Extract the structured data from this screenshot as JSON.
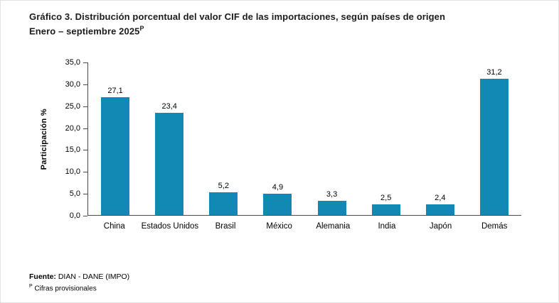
{
  "header": {
    "title": "Gráfico 3. Distribución porcentual del valor CIF de las importaciones, según países de origen",
    "subtitle": "Enero – septiembre 2025",
    "subtitle_superscript": "P"
  },
  "chart_data": {
    "type": "bar",
    "title": "Gráfico 3. Distribución porcentual del valor CIF de las importaciones, según países de origen. Enero – septiembre 2025",
    "categories": [
      "China",
      "Estados Unidos",
      "Brasil",
      "México",
      "Alemania",
      "India",
      "Japón",
      "Demás"
    ],
    "values": [
      27.1,
      23.4,
      5.2,
      4.9,
      3.3,
      2.5,
      2.4,
      31.2
    ],
    "value_labels": [
      "27,1",
      "23,4",
      "5,2",
      "4,9",
      "3,3",
      "2,5",
      "2,4",
      "31,2"
    ],
    "xlabel": "",
    "ylabel": "Participación  %",
    "ylim": [
      0,
      35
    ],
    "y_ticks_top_to_bottom": [
      "35,0",
      "30,0",
      "25,0",
      "20,0",
      "15,0",
      "10,0",
      "5,0",
      "0,0"
    ],
    "grid": false,
    "legend": false,
    "bar_color": "#1289b4"
  },
  "footer": {
    "source_label": "Fuente:",
    "source_text": " DIAN - DANE (IMPO)",
    "note_superscript": "P",
    "note_text": " Cifras provisionales"
  },
  "colors": {
    "bar": "#1289b4",
    "axis": "#4a4a4a",
    "text": "#1a1a1a"
  }
}
